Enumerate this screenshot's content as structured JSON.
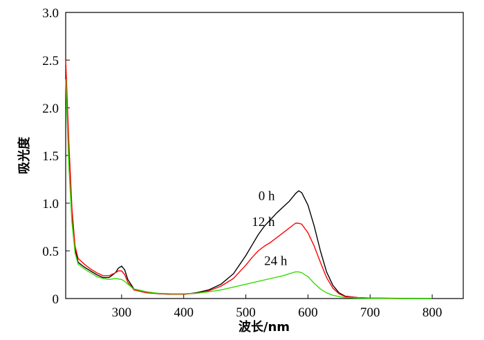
{
  "chart_data": {
    "type": "line",
    "title": "",
    "xlabel": "波长/nm",
    "ylabel": "吸光度",
    "xlim": [
      210,
      850
    ],
    "ylim": [
      0,
      3.0
    ],
    "xticks": [
      300,
      400,
      500,
      600,
      700,
      800
    ],
    "yticks": [
      0,
      0.5,
      1.0,
      1.5,
      2.0,
      2.5,
      3.0
    ],
    "xtick_labels": [
      "300",
      "400",
      "500",
      "600",
      "700",
      "800"
    ],
    "ytick_labels": [
      "0",
      "0.5",
      "1.0",
      "1.5",
      "2.0",
      "2.5",
      "3.0"
    ],
    "grid": false,
    "legend": "none",
    "series": [
      {
        "name": "0 h",
        "color": "#000000",
        "x": [
          210,
          215,
          220,
          225,
          230,
          240,
          250,
          260,
          270,
          280,
          290,
          295,
          300,
          305,
          310,
          320,
          340,
          360,
          380,
          400,
          420,
          440,
          460,
          480,
          500,
          510,
          520,
          530,
          540,
          550,
          560,
          570,
          580,
          585,
          590,
          600,
          610,
          620,
          630,
          640,
          650,
          660,
          680,
          700,
          750,
          800
        ],
        "y": [
          2.45,
          1.6,
          0.9,
          0.52,
          0.38,
          0.33,
          0.29,
          0.25,
          0.22,
          0.22,
          0.27,
          0.32,
          0.34,
          0.3,
          0.2,
          0.1,
          0.07,
          0.05,
          0.045,
          0.045,
          0.06,
          0.09,
          0.15,
          0.26,
          0.45,
          0.56,
          0.67,
          0.76,
          0.83,
          0.9,
          0.96,
          1.02,
          1.1,
          1.13,
          1.11,
          0.98,
          0.76,
          0.5,
          0.28,
          0.14,
          0.06,
          0.025,
          0.01,
          0.005,
          0.002,
          0.0
        ]
      },
      {
        "name": "12 h",
        "color": "#ff0000",
        "x": [
          210,
          215,
          220,
          225,
          230,
          240,
          250,
          260,
          270,
          280,
          290,
          295,
          300,
          305,
          310,
          320,
          340,
          360,
          380,
          400,
          420,
          440,
          460,
          480,
          500,
          510,
          520,
          530,
          540,
          550,
          560,
          570,
          580,
          585,
          590,
          600,
          610,
          620,
          630,
          640,
          650,
          660,
          680,
          700,
          750
        ],
        "y": [
          2.5,
          1.65,
          0.95,
          0.55,
          0.42,
          0.36,
          0.31,
          0.27,
          0.24,
          0.24,
          0.27,
          0.29,
          0.29,
          0.25,
          0.17,
          0.09,
          0.06,
          0.05,
          0.045,
          0.045,
          0.055,
          0.08,
          0.13,
          0.21,
          0.35,
          0.43,
          0.5,
          0.55,
          0.59,
          0.64,
          0.69,
          0.74,
          0.79,
          0.79,
          0.78,
          0.69,
          0.55,
          0.38,
          0.22,
          0.11,
          0.05,
          0.02,
          0.01,
          0.005,
          0.0
        ]
      },
      {
        "name": "24 h",
        "color": "#33dd00",
        "x": [
          210,
          215,
          220,
          225,
          230,
          240,
          250,
          260,
          270,
          280,
          290,
          300,
          305,
          310,
          320,
          340,
          360,
          380,
          400,
          420,
          440,
          460,
          480,
          500,
          520,
          540,
          560,
          570,
          580,
          585,
          590,
          600,
          610,
          620,
          630,
          640,
          650,
          660,
          680,
          700,
          750,
          800
        ],
        "y": [
          2.3,
          1.4,
          0.8,
          0.48,
          0.36,
          0.31,
          0.27,
          0.23,
          0.21,
          0.2,
          0.21,
          0.2,
          0.18,
          0.15,
          0.1,
          0.07,
          0.055,
          0.05,
          0.05,
          0.055,
          0.07,
          0.09,
          0.12,
          0.15,
          0.18,
          0.21,
          0.24,
          0.26,
          0.28,
          0.28,
          0.27,
          0.23,
          0.16,
          0.1,
          0.06,
          0.035,
          0.02,
          0.01,
          0.005,
          0.002,
          0.0,
          0.0
        ]
      }
    ]
  }
}
